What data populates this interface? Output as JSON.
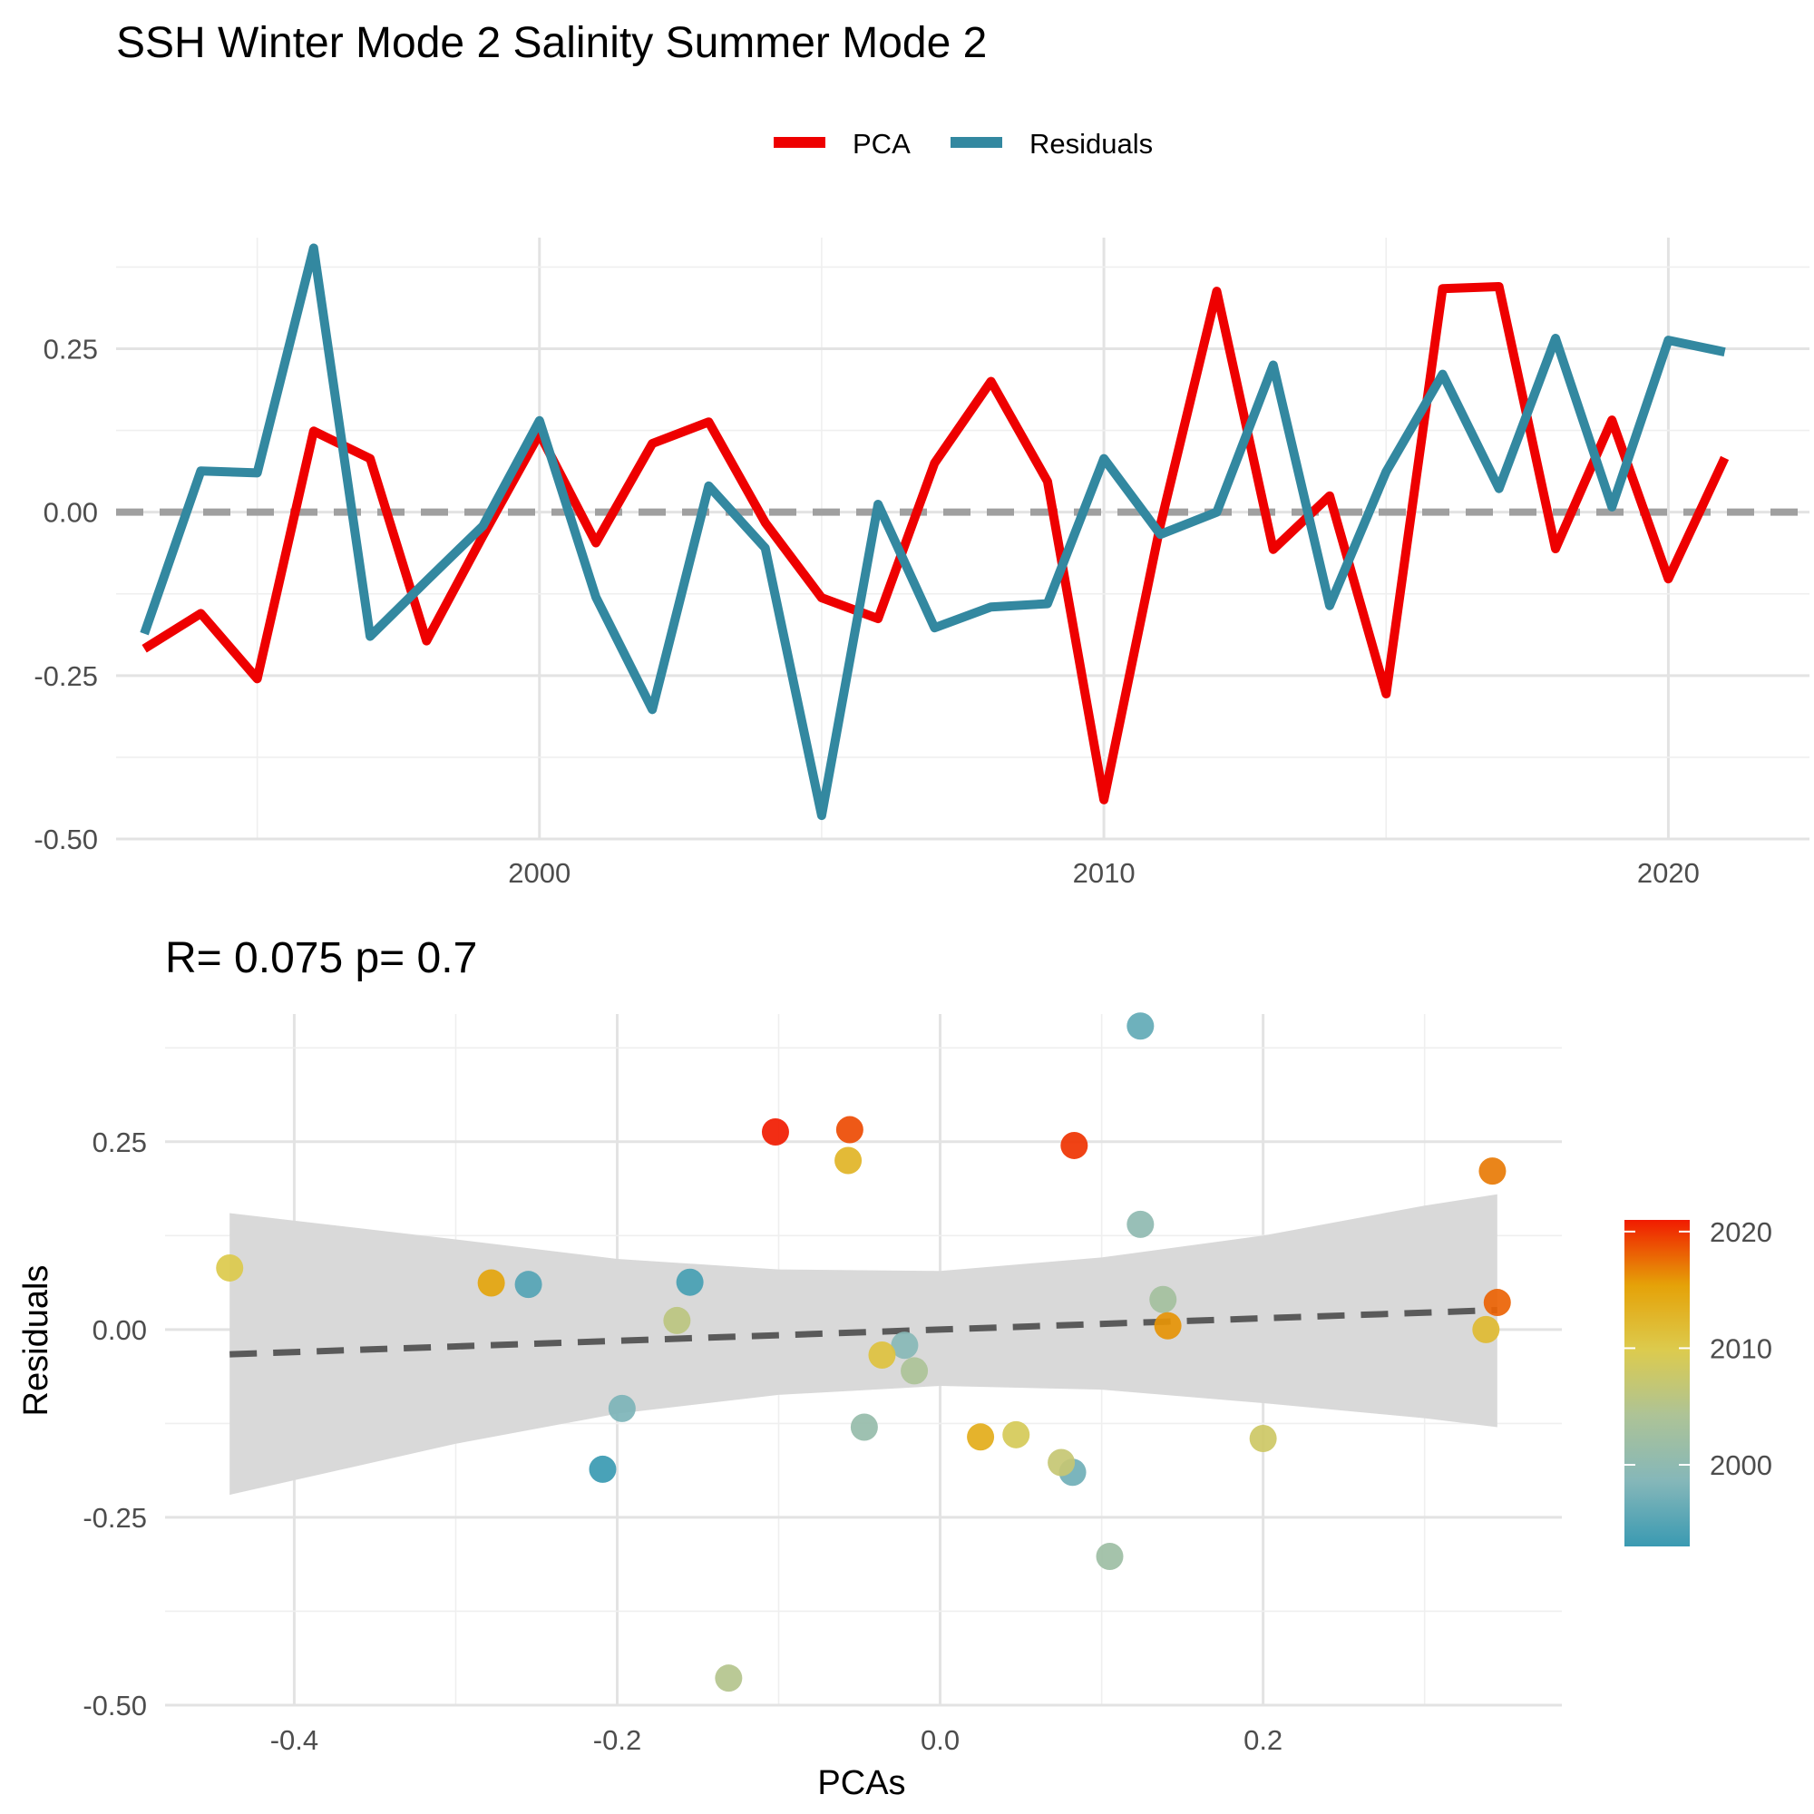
{
  "title": "SSH Winter Mode 2 Salinity Summer Mode 2",
  "colors": {
    "pca": "#EE0000",
    "residuals": "#3388A0",
    "zero_line": "#a0a0a0",
    "fit_line": "#5a5a5a",
    "ribbon": "#d9d9d9",
    "gradient": [
      "#3A9AB2",
      "#85B7B9",
      "#ADC397",
      "#DCCB4E",
      "#E5A208",
      "#F11B00"
    ]
  },
  "chart_data": [
    {
      "type": "line",
      "title": "",
      "xlabel": "",
      "ylabel": "",
      "legend_position": "top",
      "x_ticks": [
        2000,
        2010,
        2020
      ],
      "y_ticks": [
        "-0.50",
        "-0.25",
        "0.00",
        "0.25"
      ],
      "xlim": [
        1992.5,
        2022.5
      ],
      "ylim": [
        -0.5,
        0.42
      ],
      "reference_line_y": 0,
      "x": [
        1993,
        1994,
        1995,
        1996,
        1997,
        1998,
        1999,
        2000,
        2001,
        2002,
        2003,
        2004,
        2005,
        2006,
        2007,
        2008,
        2009,
        2010,
        2011,
        2012,
        2013,
        2014,
        2015,
        2016,
        2017,
        2018,
        2019,
        2020,
        2021
      ],
      "series": [
        {
          "name": "PCA",
          "values": [
            -0.209,
            -0.155,
            -0.255,
            0.124,
            0.082,
            -0.197,
            -0.036,
            0.12,
            -0.047,
            0.105,
            0.138,
            -0.016,
            -0.131,
            -0.163,
            0.075,
            0.2,
            0.047,
            -0.44,
            -0.02,
            0.338,
            -0.057,
            0.025,
            -0.278,
            0.342,
            0.345,
            -0.056,
            0.141,
            -0.102,
            0.083
          ]
        },
        {
          "name": "Residuals",
          "values": [
            -0.186,
            0.063,
            0.06,
            0.404,
            -0.19,
            -0.105,
            -0.021,
            0.14,
            -0.13,
            -0.302,
            0.04,
            -0.055,
            -0.464,
            0.012,
            -0.177,
            -0.145,
            -0.14,
            0.082,
            -0.034,
            0.0,
            0.225,
            -0.143,
            0.062,
            0.211,
            0.036,
            0.266,
            0.008,
            0.263,
            0.245
          ]
        }
      ]
    },
    {
      "type": "scatter",
      "title": "R= 0.075  p= 0.7",
      "xlabel": "PCAs",
      "ylabel": "Residuals",
      "x_ticks": [
        "-0.4",
        "-0.2",
        "0.0",
        "0.2"
      ],
      "y_ticks": [
        "-0.50",
        "-0.25",
        "0.00",
        "0.25"
      ],
      "xlim": [
        -0.48,
        0.385
      ],
      "ylim": [
        -0.5,
        0.42
      ],
      "color_scale": {
        "min": 1993,
        "max": 2021,
        "ticks": [
          2000,
          2010,
          2020
        ]
      },
      "fit": {
        "intercept": 0.0,
        "slope": 0.075
      },
      "ribbon": {
        "x": [
          -0.44,
          -0.3,
          -0.2,
          -0.1,
          0.0,
          0.1,
          0.2,
          0.3,
          0.345
        ],
        "lower": [
          -0.22,
          -0.152,
          -0.112,
          -0.087,
          -0.075,
          -0.08,
          -0.098,
          -0.118,
          -0.13
        ],
        "upper": [
          0.155,
          0.12,
          0.094,
          0.08,
          0.078,
          0.096,
          0.125,
          0.165,
          0.18
        ]
      },
      "points": [
        {
          "year": 1993,
          "x": -0.209,
          "y": -0.186
        },
        {
          "year": 1994,
          "x": -0.155,
          "y": 0.063
        },
        {
          "year": 1995,
          "x": -0.255,
          "y": 0.06
        },
        {
          "year": 1996,
          "x": 0.124,
          "y": 0.404
        },
        {
          "year": 1997,
          "x": 0.082,
          "y": -0.19
        },
        {
          "year": 1998,
          "x": -0.197,
          "y": -0.105
        },
        {
          "year": 1999,
          "x": -0.022,
          "y": -0.021
        },
        {
          "year": 2000,
          "x": 0.124,
          "y": 0.14
        },
        {
          "year": 2001,
          "x": -0.047,
          "y": -0.13
        },
        {
          "year": 2002,
          "x": 0.105,
          "y": -0.302
        },
        {
          "year": 2003,
          "x": 0.138,
          "y": 0.04
        },
        {
          "year": 2004,
          "x": -0.016,
          "y": -0.055
        },
        {
          "year": 2005,
          "x": -0.131,
          "y": -0.464
        },
        {
          "year": 2006,
          "x": -0.163,
          "y": 0.012
        },
        {
          "year": 2007,
          "x": 0.075,
          "y": -0.177
        },
        {
          "year": 2008,
          "x": 0.2,
          "y": -0.145
        },
        {
          "year": 2009,
          "x": 0.047,
          "y": -0.14
        },
        {
          "year": 2010,
          "x": -0.44,
          "y": 0.082
        },
        {
          "year": 2011,
          "x": -0.036,
          "y": -0.034
        },
        {
          "year": 2012,
          "x": 0.338,
          "y": 0.0
        },
        {
          "year": 2013,
          "x": -0.057,
          "y": 0.225
        },
        {
          "year": 2014,
          "x": 0.025,
          "y": -0.143
        },
        {
          "year": 2015,
          "x": -0.278,
          "y": 0.062
        },
        {
          "year": 2016,
          "x": 0.141,
          "y": 0.005
        },
        {
          "year": 2017,
          "x": 0.342,
          "y": 0.211
        },
        {
          "year": 2018,
          "x": 0.345,
          "y": 0.036
        },
        {
          "year": 2019,
          "x": -0.056,
          "y": 0.266
        },
        {
          "year": 2020,
          "x": 0.083,
          "y": 0.245
        },
        {
          "year": 2021,
          "x": -0.102,
          "y": 0.263
        }
      ]
    }
  ]
}
